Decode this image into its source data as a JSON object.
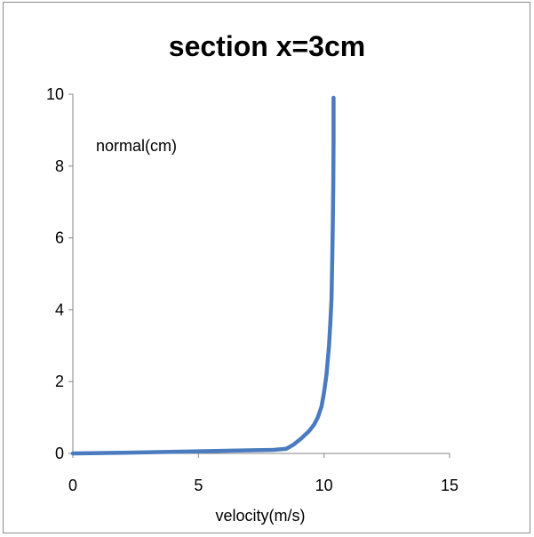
{
  "chart_data": {
    "type": "line",
    "title": "section x=3cm",
    "xlabel": "velocity(m/s)",
    "ylabel": "normal(cm)",
    "xlim": [
      0,
      15
    ],
    "ylim": [
      0,
      10
    ],
    "xticks": [
      "0",
      "5",
      "10",
      "15"
    ],
    "yticks": [
      "0",
      "2",
      "4",
      "6",
      "8",
      "10"
    ],
    "grid": false,
    "series_color": "#4a7bbf",
    "series": [
      {
        "x": [
          0,
          2,
          5,
          8,
          8.5,
          8.8,
          9.1,
          9.4,
          9.6,
          9.75,
          9.9,
          10.0,
          10.1,
          10.2,
          10.25,
          10.3,
          10.33,
          10.35,
          10.37,
          10.38,
          10.38
        ],
        "y": [
          0,
          0.02,
          0.06,
          0.1,
          0.13,
          0.25,
          0.42,
          0.62,
          0.8,
          1.0,
          1.3,
          1.7,
          2.2,
          3.0,
          3.6,
          4.3,
          5.5,
          6.5,
          7.5,
          8.7,
          9.9
        ]
      }
    ]
  }
}
